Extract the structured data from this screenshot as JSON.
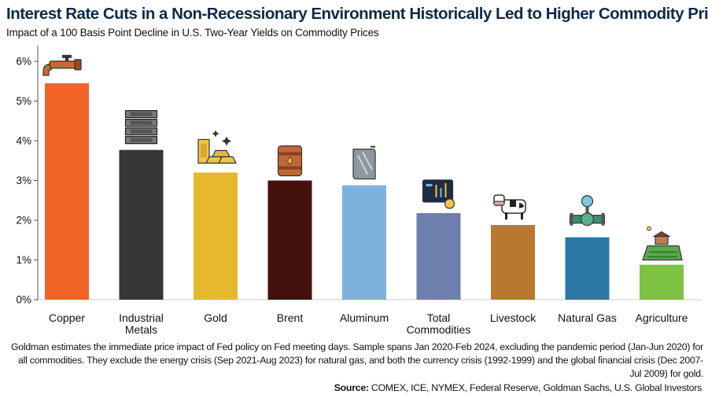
{
  "header": {
    "title": "Interest Rate Cuts in a Non-Recessionary Environment Historically Led to Higher Commodity Prices",
    "subtitle": "Impact of a 100 Basis Point Decline in U.S. Two-Year Yields on Commodity Prices"
  },
  "chart_data": {
    "type": "bar",
    "categories": [
      [
        "Copper"
      ],
      [
        "Industrial",
        "Metals"
      ],
      [
        "Gold"
      ],
      [
        "Brent"
      ],
      [
        "Aluminum"
      ],
      [
        "Total",
        "Commodities"
      ],
      [
        "Livestock"
      ],
      [
        "Natural Gas"
      ],
      [
        "Agriculture"
      ]
    ],
    "values": [
      5.45,
      3.77,
      3.2,
      3.0,
      2.88,
      2.18,
      1.88,
      1.57,
      0.88
    ],
    "colors": [
      "#f26327",
      "#363636",
      "#e6b82c",
      "#45110f",
      "#7fb1de",
      "#6f7fae",
      "#b9782f",
      "#2b77a5",
      "#7dc242"
    ],
    "icons": [
      "faucet-icon",
      "steel-ingots-icon",
      "gold-bars-icon",
      "oil-barrel-icon",
      "aluminum-sheet-icon",
      "trading-screen-icon",
      "cow-icon",
      "gas-pipe-icon",
      "farm-field-icon"
    ],
    "ylim": [
      0,
      6.4
    ],
    "yticks": [
      0,
      1,
      2,
      3,
      4,
      5,
      6
    ],
    "ytick_labels": [
      "0%",
      "1%",
      "2%",
      "3%",
      "4%",
      "5%",
      "6%"
    ],
    "grid": false
  },
  "footer": {
    "note": "Goldman estimates the immediate price impact of Fed policy on Fed meeting days. Sample spans Jan 2020-Feb 2024, excluding the pandemic period (Jan-Jun 2020) for all commodities. They exclude the energy crisis (Sep 2021-Aug 2023) for natural gas, and both the currency crisis (1992-1999) and the global financial crisis (Dec 2007-Jul 2009) for gold.",
    "source_label": "Source:",
    "source_text": " COMEX, ICE, NYMEX, Federal Reserve, Goldman Sachs, U.S. Global Investors"
  }
}
